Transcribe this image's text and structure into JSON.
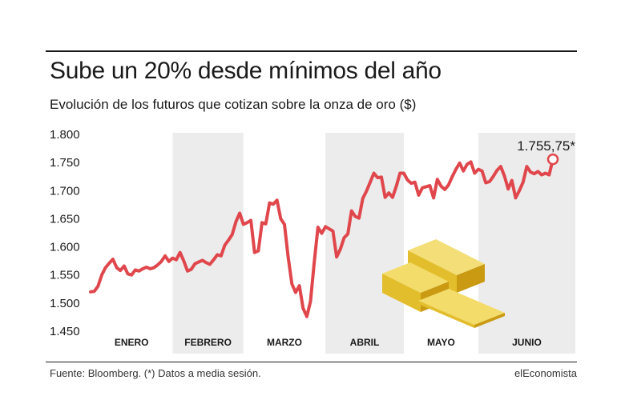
{
  "header": {
    "title": "Sube un 20% desde mínimos del año",
    "subtitle": "Evolución de los futuros que cotizan sobre la onza de oro ($)"
  },
  "footer": {
    "source": "Fuente: Bloomberg. (*) Datos a media sesión.",
    "brand": "elEconomista"
  },
  "illustration": {
    "name": "gold-bars-icon"
  },
  "colors": {
    "line": "#e0474c",
    "band": "#ececec",
    "gold_light": "#f3dc6a",
    "gold_mid": "#e6c12e",
    "gold_dark": "#c99a12"
  },
  "chart_data": {
    "type": "line",
    "title": "Sube un 20% desde mínimos del año",
    "subtitle": "Evolución de los futuros que cotizan sobre la onza de oro ($)",
    "xlabel": "",
    "ylabel": "",
    "ylim": [
      1450,
      1800
    ],
    "yticks": [
      1450,
      1500,
      1550,
      1600,
      1650,
      1700,
      1750,
      1800
    ],
    "ytick_labels": [
      "1.450",
      "1.500",
      "1.550",
      "1.600",
      "1.650",
      "1.700",
      "1.750",
      "1.800"
    ],
    "months": [
      "ENERO",
      "FEBRERO",
      "MARZO",
      "ABRIL",
      "MAYO",
      "JUNIO"
    ],
    "month_start_index": [
      0,
      22,
      41,
      63,
      84,
      104
    ],
    "grid": "vertical shaded bands for alternating months",
    "annotation": {
      "label": "1.755,75*",
      "value": 1755.75
    },
    "series": [
      {
        "name": "Futuros oro ($/onza)",
        "values": [
          1520,
          1521,
          1530,
          1550,
          1563,
          1571,
          1578,
          1563,
          1558,
          1566,
          1552,
          1550,
          1559,
          1557,
          1561,
          1564,
          1561,
          1563,
          1568,
          1574,
          1584,
          1574,
          1580,
          1577,
          1590,
          1575,
          1557,
          1560,
          1570,
          1573,
          1576,
          1572,
          1569,
          1577,
          1586,
          1584,
          1603,
          1612,
          1622,
          1645,
          1660,
          1640,
          1643,
          1647,
          1590,
          1593,
          1643,
          1641,
          1678,
          1676,
          1683,
          1650,
          1640,
          1582,
          1534,
          1519,
          1531,
          1491,
          1476,
          1503,
          1573,
          1635,
          1624,
          1636,
          1632,
          1628,
          1582,
          1596,
          1616,
          1623,
          1664,
          1654,
          1651,
          1686,
          1699,
          1715,
          1731,
          1723,
          1724,
          1688,
          1696,
          1688,
          1708,
          1731,
          1731,
          1719,
          1713,
          1715,
          1692,
          1705,
          1707,
          1709,
          1687,
          1720,
          1708,
          1702,
          1710,
          1725,
          1738,
          1749,
          1735,
          1747,
          1751,
          1731,
          1738,
          1735,
          1714,
          1716,
          1725,
          1736,
          1743,
          1726,
          1703,
          1718,
          1687,
          1700,
          1715,
          1743,
          1733,
          1730,
          1734,
          1728,
          1731,
          1728,
          1755.75
        ]
      }
    ]
  }
}
